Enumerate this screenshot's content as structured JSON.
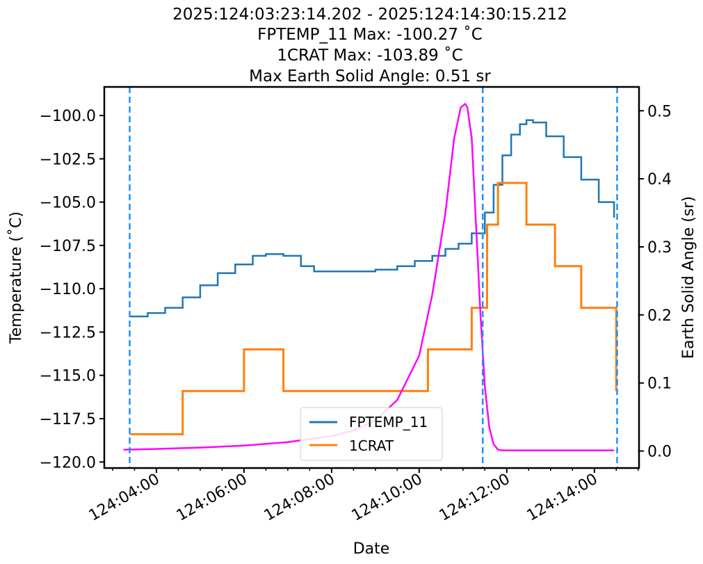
{
  "chart_data": {
    "type": "line",
    "title_lines": [
      "2025:124:03:23:14.202 - 2025:124:14:30:15.212",
      "FPTEMP_11 Max: -100.27 ˚C",
      "1CRAT Max: -103.89 ˚C",
      "Max Earth Solid Angle: 0.51 sr"
    ],
    "xlabel": "Date",
    "ylabel_left": "Temperature (˚C)",
    "ylabel_right": "Earth Solid Angle (sr)",
    "x_ticks": [
      {
        "value": 4,
        "label": "124:04:00"
      },
      {
        "value": 6,
        "label": "124:06:00"
      },
      {
        "value": 8,
        "label": "124:08:00"
      },
      {
        "value": 10,
        "label": "124:10:00"
      },
      {
        "value": 12,
        "label": "124:12:00"
      },
      {
        "value": 14,
        "label": "124:14:00"
      }
    ],
    "xlim": [
      2.81,
      15.02
    ],
    "ylim_left": [
      -120.35,
      -98.35
    ],
    "ylim_right": [
      -0.025,
      0.535
    ],
    "y_ticks_left": [
      {
        "value": -100.0,
        "label": "−100.0"
      },
      {
        "value": -102.5,
        "label": "−102.5"
      },
      {
        "value": -105.0,
        "label": "−105.0"
      },
      {
        "value": -107.5,
        "label": "−107.5"
      },
      {
        "value": -110.0,
        "label": "−110.0"
      },
      {
        "value": -112.5,
        "label": "−112.5"
      },
      {
        "value": -115.0,
        "label": "−115.0"
      },
      {
        "value": -117.5,
        "label": "−117.5"
      },
      {
        "value": -120.0,
        "label": "−120.0"
      }
    ],
    "y_ticks_right": [
      {
        "value": 0.0,
        "label": "0.0"
      },
      {
        "value": 0.1,
        "label": "0.1"
      },
      {
        "value": 0.2,
        "label": "0.2"
      },
      {
        "value": 0.3,
        "label": "0.3"
      },
      {
        "value": 0.4,
        "label": "0.4"
      },
      {
        "value": 0.5,
        "label": "0.5"
      }
    ],
    "vertical_lines": [
      3.39,
      11.45,
      14.52
    ],
    "series": [
      {
        "name": "FPTEMP_11",
        "axis": "left",
        "color": "#1f77b4",
        "step": true,
        "x": [
          3.39,
          3.8,
          4.2,
          4.6,
          5.0,
          5.4,
          5.8,
          6.2,
          6.5,
          6.9,
          7.3,
          7.6,
          8.0,
          8.5,
          9.0,
          9.5,
          9.9,
          10.3,
          10.6,
          10.9,
          11.2,
          11.5,
          11.7,
          11.9,
          12.1,
          12.3,
          12.45,
          12.6,
          12.9,
          13.3,
          13.7,
          14.1,
          14.45
        ],
        "values": [
          -111.6,
          -111.4,
          -111.1,
          -110.5,
          -109.8,
          -109.1,
          -108.6,
          -108.1,
          -108.0,
          -108.1,
          -108.7,
          -109.0,
          -109.0,
          -109.0,
          -108.9,
          -108.7,
          -108.4,
          -108.1,
          -107.7,
          -107.4,
          -106.8,
          -105.6,
          -104.0,
          -102.3,
          -101.1,
          -100.5,
          -100.27,
          -100.4,
          -101.2,
          -102.4,
          -103.7,
          -105.0,
          -105.9
        ],
        "visible_values_used_for_points": true
      },
      {
        "name": "1CRAT",
        "axis": "left",
        "color": "#ff7f0e",
        "step": true,
        "x": [
          3.39,
          4.5,
          4.6,
          5.0,
          5.9,
          6.0,
          6.4,
          6.9,
          9.4,
          10.2,
          10.5,
          10.9,
          11.2,
          11.55,
          11.8,
          12.45,
          13.1,
          13.7,
          14.5
        ],
        "values": [
          -118.4,
          -118.4,
          -115.9,
          -115.9,
          -115.9,
          -113.5,
          -113.5,
          -115.9,
          -115.9,
          -113.5,
          -113.5,
          -113.5,
          -111.1,
          -106.3,
          -103.89,
          -106.3,
          -108.7,
          -111.1,
          -113.5
        ],
        "end_value": -115.9
      },
      {
        "name": "Earth Solid Angle",
        "axis": "right",
        "color": "#ff00ff",
        "step": false,
        "x": [
          3.25,
          4.0,
          5.0,
          6.0,
          7.0,
          8.0,
          8.5,
          9.0,
          9.5,
          10.0,
          10.3,
          10.6,
          10.8,
          10.95,
          11.05,
          11.1,
          11.2,
          11.3,
          11.4,
          11.5,
          11.6,
          11.7,
          11.8,
          11.9,
          12.0,
          12.5,
          13.0,
          14.0,
          14.45
        ],
        "values": [
          0.002,
          0.003,
          0.005,
          0.008,
          0.013,
          0.022,
          0.03,
          0.045,
          0.075,
          0.14,
          0.23,
          0.35,
          0.46,
          0.505,
          0.51,
          0.505,
          0.46,
          0.33,
          0.2,
          0.095,
          0.035,
          0.01,
          0.002,
          0.001,
          0.001,
          0.001,
          0.001,
          0.001,
          0.001
        ]
      }
    ],
    "legend": {
      "placement": "lower-center",
      "entries": [
        {
          "label": "FPTEMP_11",
          "color": "#1f77b4"
        },
        {
          "label": "1CRAT",
          "color": "#ff7f0e"
        }
      ]
    },
    "grid": false,
    "vline_color": "#1e90ff"
  }
}
